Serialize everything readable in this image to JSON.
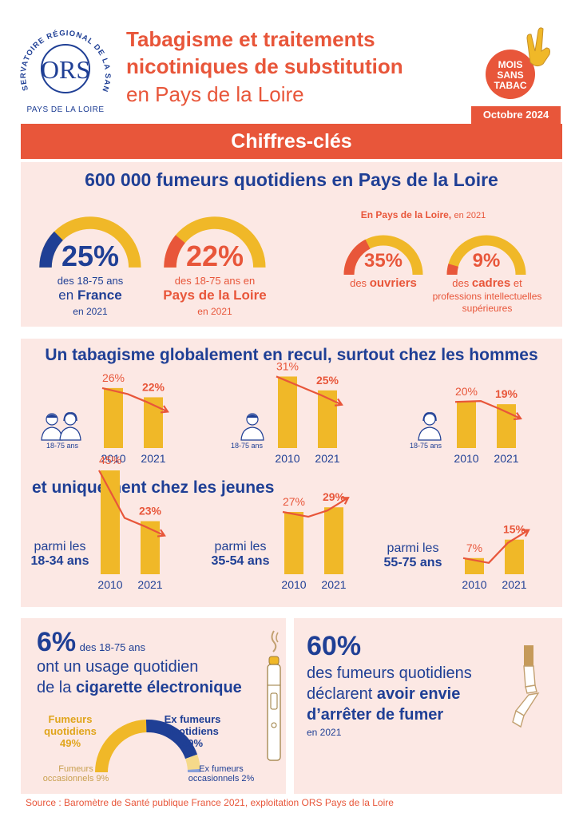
{
  "logo": {
    "arc_text": "OBSERVATOIRE RÉGIONAL DE LA SANTÉ",
    "mark": "ORS",
    "region": "PAYS DE LA LOIRE"
  },
  "header": {
    "title_line1": "Tabagisme et traitements",
    "title_line2": "nicotiniques de substitution",
    "subtitle": "en Pays de la Loire",
    "date_badge": "Octobre 2024",
    "campaign_line1": "MOIS",
    "campaign_line2": "SANS",
    "campaign_line3": "TABAC"
  },
  "banner": {
    "label": "Chiffres-clés"
  },
  "smokers": {
    "headline": "600 000 fumeurs quotidiens en Pays de la Loire",
    "france": {
      "pct": "25%",
      "value": 25,
      "line1": "des 18-75 ans",
      "line2_pre": "en",
      "line2_strong": "France",
      "line3": "en 2021"
    },
    "region": {
      "pct": "22%",
      "value": 22,
      "line1": "des 18-75 ans en",
      "line2_strong": "Pays de la Loire",
      "line3": "en 2021"
    },
    "csp_title_strong": "En Pays de la Loire,",
    "csp_title_rest": "en 2021",
    "ouvriers": {
      "pct": "35%",
      "value": 35,
      "pre": "des",
      "strong": "ouvriers"
    },
    "cadres": {
      "pct": "9%",
      "value": 9,
      "pre": "des",
      "strong": "cadres",
      "post": "et",
      "line2": "professions intellectuelles",
      "line3": "supérieures"
    }
  },
  "trend": {
    "headline": "Un tabagisme globalement en recul, surtout chez les hommes",
    "subheadline": "et uniquement chez les jeunes",
    "age_label": "18-75 ans",
    "years": [
      "2010",
      "2021"
    ],
    "ymax": 45,
    "groups": [
      {
        "id": "all",
        "values": [
          26,
          22
        ],
        "labels": [
          "26%",
          "22%"
        ]
      },
      {
        "id": "men",
        "values": [
          31,
          25
        ],
        "labels": [
          "31%",
          "25%"
        ]
      },
      {
        "id": "women",
        "values": [
          20,
          19
        ],
        "labels": [
          "20%",
          "19%"
        ]
      }
    ],
    "ages": [
      {
        "pre": "parmi les",
        "strong": "18-34 ans",
        "values": [
          45,
          23
        ],
        "labels": [
          "45%",
          "23%"
        ]
      },
      {
        "pre": "parmi les",
        "strong": "35-54 ans",
        "values": [
          27,
          29
        ],
        "labels": [
          "27%",
          "29%"
        ]
      },
      {
        "pre": "parmi les",
        "strong": "55-75 ans",
        "values": [
          7,
          15
        ],
        "labels": [
          "7%",
          "15%"
        ]
      }
    ]
  },
  "ecig": {
    "pct": "6%",
    "pct_rest": "des 18-75 ans",
    "line2": "ont un usage quotidien",
    "line3_pre": "de la",
    "line3_strong": "cigarette électronique",
    "segments": [
      {
        "label1": "Fumeurs",
        "label2": "quotidiens",
        "pct": "49%",
        "value": 49,
        "color": "#f0b828"
      },
      {
        "label1": "Ex fumeurs",
        "label2": "quotidiens",
        "pct": "40%",
        "value": 40,
        "color": "#1f3f95"
      },
      {
        "label1": "Fumeurs",
        "label2": "occasionnels 9%",
        "value": 9,
        "color": "#f5d98a"
      },
      {
        "label1": "Ex fumeurs",
        "label2": "occasionnels 2%",
        "value": 2,
        "color": "#8aa0d8"
      }
    ]
  },
  "quit": {
    "pct": "60%",
    "line1": "des fumeurs quotidiens",
    "line2_pre": "déclarent",
    "line2_strong": "avoir envie",
    "line3": "d’arrêter de fumer",
    "line4": "en 2021"
  },
  "source": "Source :  Baromètre de Santé publique France 2021, exploitation ORS Pays de la Loire",
  "colors": {
    "navy": "#1f3f95",
    "red": "#e8563a",
    "yellow": "#f0b828",
    "pink": "#fce8e4"
  }
}
